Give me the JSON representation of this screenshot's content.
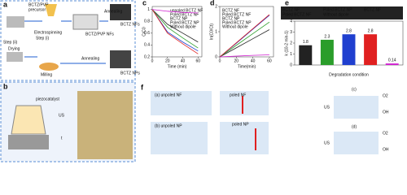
{
  "panel_a": {
    "label": "a",
    "texts": [
      "BCTZ/PVP",
      "precursor",
      "Electrospinning",
      "Step (i)",
      "BCTZ/PVP NFs",
      "Annealing",
      "BCTZ NFs",
      "Step (ii)",
      "Drying",
      "Milling",
      "Annealing",
      "BCTZ NPs"
    ]
  },
  "panel_b": {
    "label": "b",
    "texts": [
      "piezocatalyst",
      "US",
      "t"
    ]
  },
  "panel_f": {
    "label": "f",
    "texts": [
      "(a) unpoled NF",
      "poled NF",
      "(b) unpoled NP",
      "poled NP",
      "(c)",
      "(d)",
      "US",
      "US",
      "O2",
      "OH",
      "O2",
      "OH"
    ]
  },
  "chart_data": [
    {
      "type": "line",
      "panel": "c",
      "xlabel": "Time (min)",
      "ylabel": "C/C0",
      "x": [
        0,
        20,
        40,
        60
      ],
      "xlim": [
        0,
        65
      ],
      "xticks": [
        0,
        20,
        40,
        60
      ],
      "ylim": [
        0.2,
        1.05
      ],
      "yticks": [
        0.2,
        0.4,
        0.6,
        0.8,
        1
      ],
      "series": [
        {
          "name": "unpoled BCTZ NF",
          "color": "#222222",
          "values": [
            1,
            0.75,
            0.6,
            0.45
          ]
        },
        {
          "name": "Poled BCTZ NF",
          "color": "#2a9d2a",
          "values": [
            1,
            0.7,
            0.52,
            0.35
          ]
        },
        {
          "name": "BCTZ NP",
          "color": "#1f3fcf",
          "values": [
            1,
            0.62,
            0.45,
            0.3
          ]
        },
        {
          "name": "Poled BCTZ NP",
          "color": "#e02020",
          "values": [
            1,
            0.6,
            0.42,
            0.25
          ]
        },
        {
          "name": "Without dipole",
          "color": "#d020d0",
          "values": [
            1,
            0.97,
            0.95,
            0.94
          ]
        }
      ]
    },
    {
      "type": "line",
      "panel": "d",
      "xlabel": "Time(min)",
      "ylabel": "ln(C0/Ct)",
      "x": [
        0,
        20,
        40,
        60
      ],
      "xlim": [
        0,
        65
      ],
      "xticks": [
        0,
        20,
        40,
        60
      ],
      "ylim": [
        0,
        2
      ],
      "yticks": [
        0,
        1,
        2
      ],
      "series": [
        {
          "name": "BCTZ NF",
          "color": "#222222",
          "values": [
            0,
            0.36,
            0.72,
            1.08
          ]
        },
        {
          "name": "Poled BCTZ NF",
          "color": "#2a9d2a",
          "values": [
            0,
            0.46,
            0.92,
            1.38
          ]
        },
        {
          "name": "BCTZ NP",
          "color": "#1f3fcf",
          "values": [
            0,
            0.54,
            1.1,
            1.65
          ]
        },
        {
          "name": "Poled BCTZ NP",
          "color": "#e02020",
          "values": [
            0,
            0.56,
            1.12,
            1.68
          ]
        },
        {
          "name": "Without dipole",
          "color": "#d020d0",
          "values": [
            0,
            0.03,
            0.06,
            0.08
          ]
        }
      ]
    },
    {
      "type": "bar",
      "panel": "e",
      "xlabel": "Degradation condition",
      "ylabel": "k (10-2 min-1)",
      "ylim": [
        0,
        4
      ],
      "yticks": [
        0,
        1,
        2,
        3,
        4
      ],
      "series": [
        {
          "name": "BCTZ NP",
          "color": "#222222",
          "values": [
            1.8
          ]
        },
        {
          "name": "Poled BCTZ NP",
          "color": "#2a9d2a",
          "values": [
            2.3
          ]
        },
        {
          "name": "BCTZ NF",
          "color": "#1f3fcf",
          "values": [
            2.8
          ]
        },
        {
          "name": "Poled BCTZ NF",
          "color": "#e02020",
          "values": [
            2.8
          ]
        },
        {
          "name": "Without dipole",
          "color": "#d020d0",
          "values": [
            0.14
          ]
        }
      ]
    }
  ]
}
